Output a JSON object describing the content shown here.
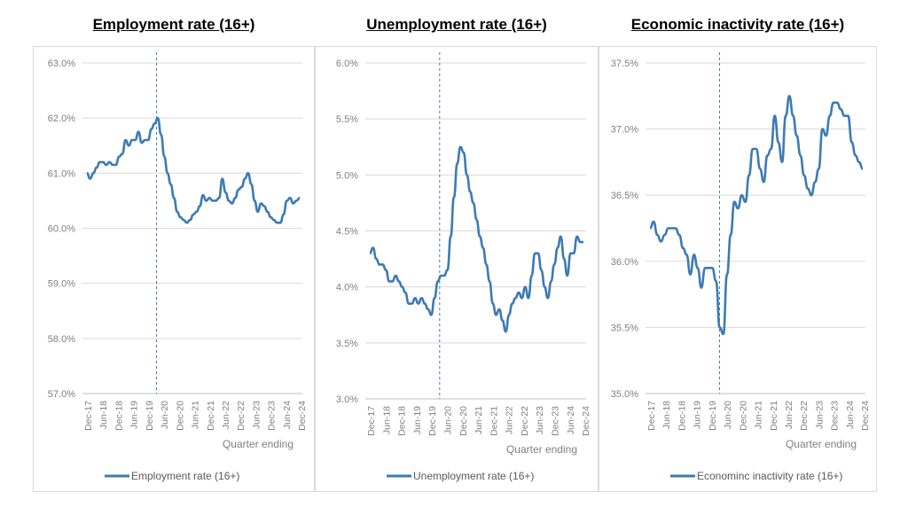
{
  "colors": {
    "line": "#3d7ab3",
    "grid": "#d9d9d9",
    "axis_text": "#7f7f7f",
    "divider": "#3d7ab3"
  },
  "chart_data": [
    {
      "type": "line",
      "title": "Employment rate (16+)",
      "xlabel": "Quarter ending",
      "ylabel": "",
      "ylim": [
        57.0,
        63.0
      ],
      "yticks": [
        "57.0%",
        "58.0%",
        "59.0%",
        "60.0%",
        "61.0%",
        "62.0%",
        "63.0%"
      ],
      "xticks": [
        "Dec-17",
        "Jun-18",
        "Dec-18",
        "Jun-19",
        "Dec-19",
        "Jun-20",
        "Dec-20",
        "Jun-21",
        "Dec-21",
        "Jun-22",
        "Dec-22",
        "Jun-23",
        "Dec-23",
        "Jun-24",
        "Dec-24"
      ],
      "divider_at": "Mar-20",
      "legend": "Employment rate (16+)",
      "legend_position": "bottom",
      "series": [
        {
          "name": "Employment rate (16+)",
          "values": [
            61.0,
            60.9,
            61.0,
            61.1,
            61.2,
            61.2,
            61.15,
            61.2,
            61.15,
            61.15,
            61.3,
            61.35,
            61.6,
            61.5,
            61.6,
            61.6,
            61.75,
            61.55,
            61.6,
            61.6,
            61.8,
            61.9,
            62.0,
            61.7,
            61.3,
            61.0,
            60.8,
            60.55,
            60.3,
            60.2,
            60.15,
            60.1,
            60.15,
            60.25,
            60.3,
            60.4,
            60.6,
            60.5,
            60.55,
            60.5,
            60.5,
            60.55,
            60.9,
            60.65,
            60.5,
            60.45,
            60.55,
            60.7,
            60.75,
            60.9,
            61.0,
            60.8,
            60.5,
            60.3,
            60.45,
            60.4,
            60.3,
            60.2,
            60.15,
            60.1,
            60.1,
            60.25,
            60.5,
            60.55,
            60.45,
            60.5,
            60.55
          ]
        }
      ]
    },
    {
      "type": "line",
      "title": "Unemployment rate (16+)",
      "xlabel": "Quarter ending",
      "ylabel": "",
      "ylim": [
        3.0,
        6.0
      ],
      "yticks": [
        "3.0%",
        "3.5%",
        "4.0%",
        "4.5%",
        "5.0%",
        "5.5%",
        "6.0%"
      ],
      "xticks": [
        "Dec-17",
        "Jun-18",
        "Dec-18",
        "Jun-19",
        "Dec-19",
        "Jun-20",
        "Dec-20",
        "Jun-21",
        "Dec-21",
        "Jun-22",
        "Dec-22",
        "Jun-23",
        "Dec-23",
        "Jun-24",
        "Dec-24"
      ],
      "divider_at": "Mar-20",
      "legend": "Unemployment rate (16+)",
      "legend_position": "bottom",
      "series": [
        {
          "name": "Unemployment rate (16+)",
          "values": [
            4.3,
            4.35,
            4.25,
            4.2,
            4.2,
            4.15,
            4.05,
            4.05,
            4.1,
            4.05,
            4.0,
            3.95,
            3.85,
            3.85,
            3.9,
            3.85,
            3.9,
            3.85,
            3.8,
            3.75,
            3.9,
            4.05,
            4.1,
            4.1,
            4.15,
            4.45,
            4.8,
            5.1,
            5.25,
            5.2,
            5.0,
            4.85,
            4.75,
            4.6,
            4.45,
            4.35,
            4.2,
            4.05,
            3.85,
            3.75,
            3.8,
            3.7,
            3.6,
            3.75,
            3.85,
            3.9,
            3.95,
            3.9,
            4.0,
            3.9,
            4.1,
            4.3,
            4.3,
            4.15,
            4.0,
            3.9,
            4.05,
            4.2,
            4.35,
            4.45,
            4.25,
            4.1,
            4.3,
            4.3,
            4.45,
            4.4,
            4.4
          ]
        }
      ]
    },
    {
      "type": "line",
      "title": "Economic inactivity rate (16+)",
      "xlabel": "Quarter ending",
      "ylabel": "",
      "ylim": [
        35.0,
        37.5
      ],
      "yticks": [
        "35.0%",
        "35.5%",
        "36.0%",
        "36.5%",
        "37.0%",
        "37.5%"
      ],
      "xticks": [
        "Dec-17",
        "Jun-18",
        "Dec-18",
        "Jun-19",
        "Dec-19",
        "Jun-20",
        "Dec-20",
        "Jun-21",
        "Dec-21",
        "Jun-22",
        "Dec-22",
        "Jun-23",
        "Dec-23",
        "Jun-24",
        "Dec-24"
      ],
      "divider_at": "Mar-20",
      "legend": "Econominc inactivity rate (16+)",
      "legend_position": "bottom",
      "series": [
        {
          "name": "Econominc inactivity rate (16+)",
          "values": [
            36.25,
            36.3,
            36.2,
            36.15,
            36.2,
            36.25,
            36.25,
            36.25,
            36.2,
            36.1,
            36.05,
            35.9,
            36.05,
            35.95,
            35.8,
            35.95,
            35.95,
            35.95,
            35.85,
            35.5,
            35.45,
            35.9,
            36.2,
            36.45,
            36.4,
            36.5,
            36.45,
            36.65,
            36.85,
            36.85,
            36.7,
            36.6,
            36.8,
            36.85,
            37.1,
            36.9,
            36.75,
            37.1,
            37.25,
            37.1,
            36.95,
            36.8,
            36.65,
            36.55,
            36.5,
            36.6,
            36.7,
            37.0,
            36.95,
            37.1,
            37.2,
            37.2,
            37.15,
            37.1,
            37.1,
            36.9,
            36.8,
            36.75,
            36.7
          ]
        }
      ]
    }
  ]
}
